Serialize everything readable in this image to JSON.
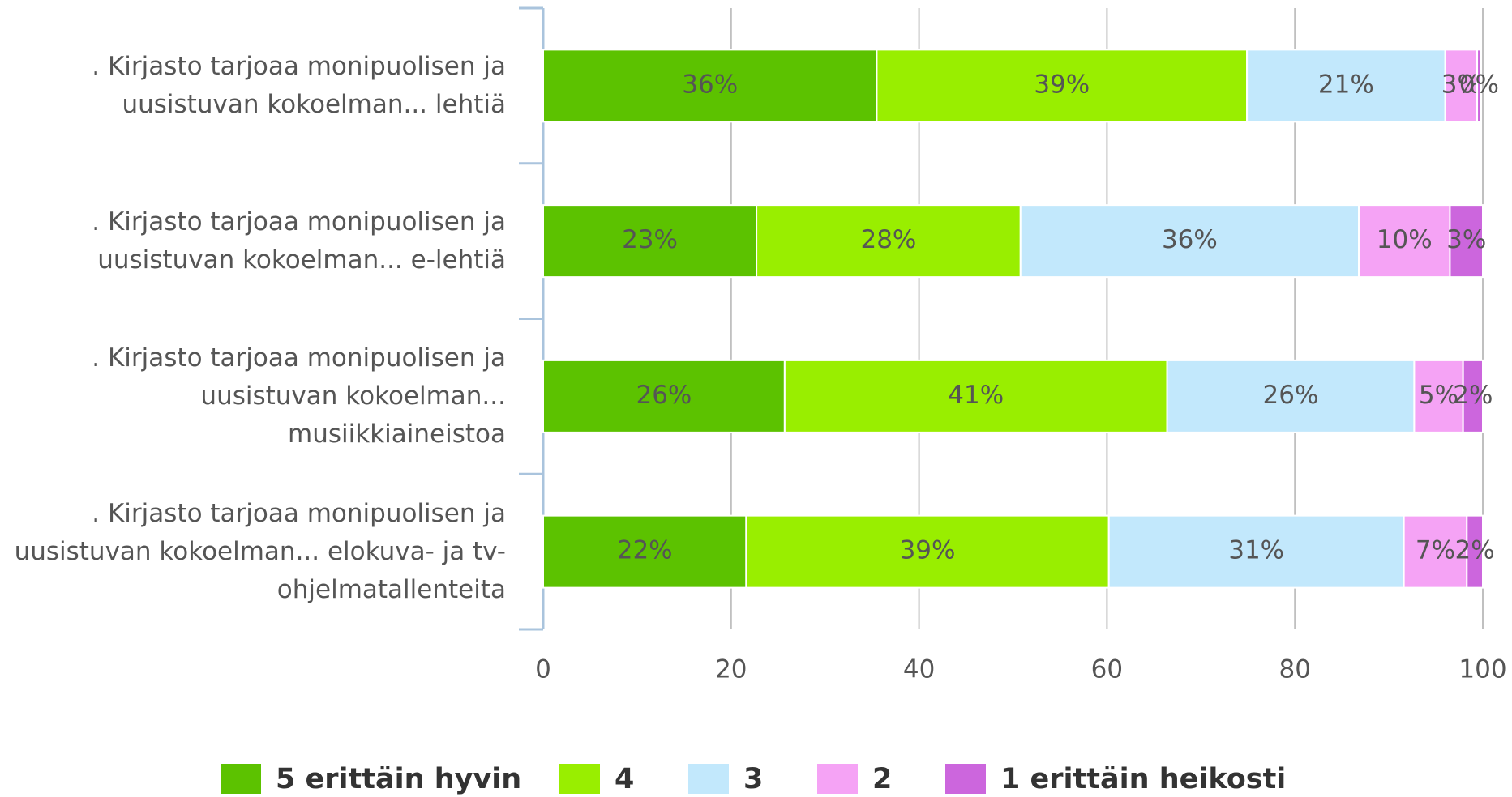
{
  "chart_data": {
    "type": "stacked-bar-horizontal",
    "categories": [
      ". Kirjasto tarjoaa monipuolisen ja uusistuvan kokoelman... lehtiä",
      ". Kirjasto tarjoaa monipuolisen ja uusistuvan kokoelman... e-lehtiä",
      ". Kirjasto tarjoaa monipuolisen ja uusistuvan kokoelman... musiikkiaineistoa",
      ". Kirjasto tarjoaa monipuolisen ja uusistuvan kokoelman... elokuva- ja tv-ohjelmatallenteita"
    ],
    "series": [
      {
        "name": "5 erittäin hyvin",
        "color": "#5cc200",
        "values": [
          35.5,
          22.7,
          25.7,
          21.6
        ],
        "value_labels": [
          "36%",
          "23%",
          "26%",
          "22%"
        ]
      },
      {
        "name": "4",
        "color": "#99ee00",
        "values": [
          39.4,
          28.1,
          40.7,
          38.6
        ],
        "value_labels": [
          "39%",
          "28%",
          "41%",
          "39%"
        ]
      },
      {
        "name": "3",
        "color": "#c2e8fc",
        "values": [
          21.1,
          36.0,
          26.3,
          31.4
        ],
        "value_labels": [
          "21%",
          "36%",
          "26%",
          "31%"
        ]
      },
      {
        "name": "2",
        "color": "#f5a3f5",
        "values": [
          3.4,
          9.7,
          5.2,
          6.7
        ],
        "value_labels": [
          "3%",
          "10%",
          "5%",
          "7%"
        ]
      },
      {
        "name": "1 erittäin heikosti",
        "color": "#cc66dd",
        "values": [
          0.4,
          3.5,
          2.1,
          1.7
        ],
        "value_labels": [
          "0%",
          "3%",
          "2%",
          "2%"
        ]
      }
    ],
    "xlim": [
      0,
      100
    ],
    "xticks": [
      0,
      20,
      40,
      60,
      80,
      100
    ],
    "grid": true,
    "legend": "bottom"
  }
}
